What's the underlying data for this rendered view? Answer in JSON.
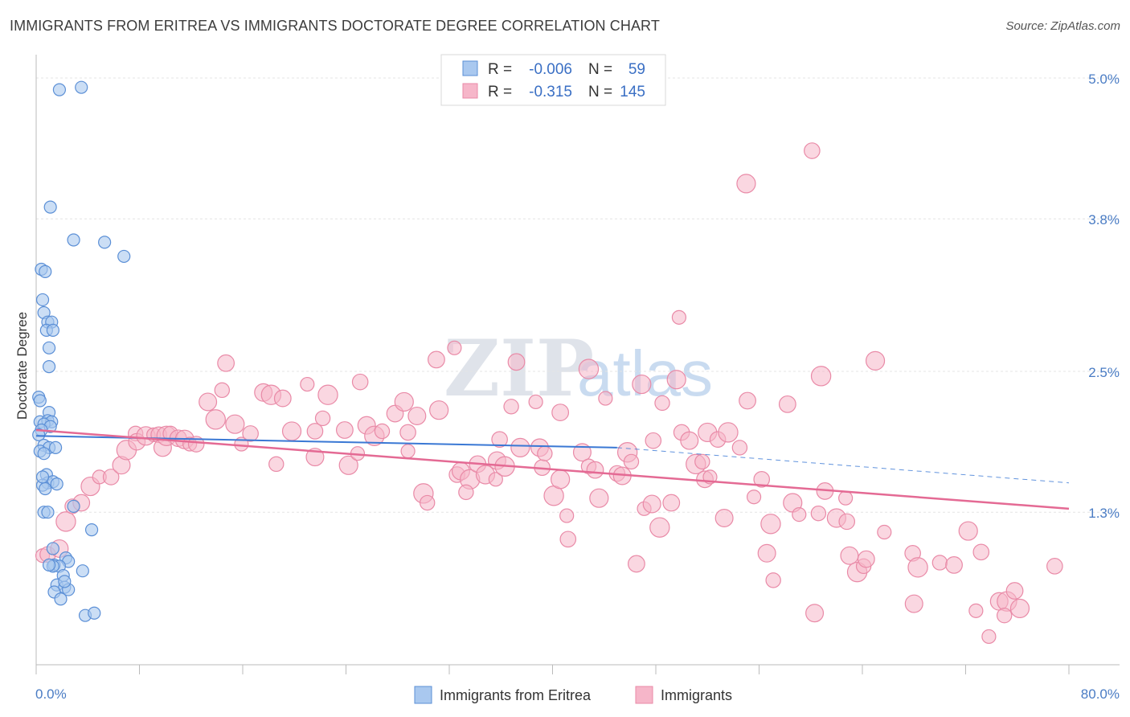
{
  "title": "IMMIGRANTS FROM ERITREA VS IMMIGRANTS DOCTORATE DEGREE CORRELATION CHART",
  "source": "Source: ZipAtlas.com",
  "watermark": {
    "zip": "ZIP",
    "atlas": "atlas"
  },
  "legend_stats": [
    {
      "r_label": "R =",
      "r_value": "-0.006",
      "n_label": "N =",
      "n_value": "59"
    },
    {
      "r_label": "R =",
      "r_value": "-0.315",
      "n_label": "N =",
      "n_value": "145"
    }
  ],
  "chart_data": {
    "type": "scatter",
    "title": "IMMIGRANTS FROM ERITREA VS IMMIGRANTS DOCTORATE DEGREE CORRELATION CHART",
    "xlabel": "",
    "ylabel": "Doctorate Degree",
    "xlim": [
      0,
      80
    ],
    "ylim": [
      0,
      5.2
    ],
    "x_tick_labels": [
      "0.0%",
      "80.0%"
    ],
    "y_ticks": [
      1.3,
      2.5,
      3.8,
      5.0
    ],
    "y_tick_labels": [
      "1.3%",
      "2.5%",
      "3.8%",
      "5.0%"
    ],
    "grid": true,
    "legend_position": "top-center",
    "colors": {
      "blue_fill": "#a9c8ef",
      "blue_stroke": "#5b8fd6",
      "blue_line": "#3a78d4",
      "pink_fill": "#f6b6c9",
      "pink_stroke": "#e98aa7",
      "pink_line": "#e46a94"
    },
    "series": [
      {
        "name": "Immigrants from Eritrea",
        "r": -0.006,
        "n": 59,
        "trend": {
          "x": [
            0,
            45
          ],
          "y": [
            1.95,
            1.85
          ],
          "dashed_extension": {
            "x": [
              45,
              80
            ],
            "y": [
              1.85,
              1.55
            ]
          }
        },
        "points": [
          [
            1.8,
            4.9
          ],
          [
            3.5,
            4.92
          ],
          [
            1.1,
            3.9
          ],
          [
            2.9,
            3.62
          ],
          [
            5.3,
            3.6
          ],
          [
            6.8,
            3.48
          ],
          [
            0.4,
            3.37
          ],
          [
            0.7,
            3.35
          ],
          [
            0.5,
            3.11
          ],
          [
            0.6,
            3.0
          ],
          [
            0.9,
            2.92
          ],
          [
            1.2,
            2.92
          ],
          [
            0.8,
            2.85
          ],
          [
            1.3,
            2.85
          ],
          [
            1.0,
            2.7
          ],
          [
            1.0,
            2.54
          ],
          [
            0.2,
            2.28
          ],
          [
            0.3,
            2.25
          ],
          [
            1.0,
            2.15
          ],
          [
            0.3,
            2.07
          ],
          [
            0.9,
            2.08
          ],
          [
            1.2,
            2.07
          ],
          [
            0.6,
            2.05
          ],
          [
            1.1,
            2.03
          ],
          [
            0.4,
            2.0
          ],
          [
            0.2,
            1.96
          ],
          [
            0.6,
            1.87
          ],
          [
            1.0,
            1.85
          ],
          [
            1.5,
            1.85
          ],
          [
            0.3,
            1.82
          ],
          [
            0.6,
            1.8
          ],
          [
            0.8,
            1.62
          ],
          [
            0.9,
            1.55
          ],
          [
            1.3,
            1.56
          ],
          [
            0.5,
            1.53
          ],
          [
            1.6,
            1.54
          ],
          [
            0.7,
            1.5
          ],
          [
            2.9,
            1.35
          ],
          [
            0.6,
            1.3
          ],
          [
            4.3,
            1.15
          ],
          [
            1.3,
            0.99
          ],
          [
            2.3,
            0.91
          ],
          [
            1.4,
            0.85
          ],
          [
            2.5,
            0.88
          ],
          [
            1.8,
            0.84
          ],
          [
            1.3,
            0.84
          ],
          [
            2.1,
            0.76
          ],
          [
            1.6,
            0.68
          ],
          [
            2.2,
            0.66
          ],
          [
            2.5,
            0.64
          ],
          [
            1.4,
            0.62
          ],
          [
            1.9,
            0.56
          ],
          [
            3.8,
            0.42
          ],
          [
            4.5,
            0.44
          ],
          [
            2.2,
            0.71
          ],
          [
            1.0,
            0.85
          ],
          [
            3.6,
            0.8
          ],
          [
            0.9,
            1.3
          ],
          [
            0.5,
            1.6
          ]
        ]
      },
      {
        "name": "Immigrants",
        "r": -0.315,
        "n": 145,
        "trend": {
          "x": [
            0,
            80
          ],
          "y": [
            2.0,
            1.33
          ]
        },
        "points": [
          [
            0.5,
            0.93
          ],
          [
            0.9,
            0.94
          ],
          [
            1.8,
            0.99
          ],
          [
            2.3,
            1.22
          ],
          [
            2.8,
            1.35
          ],
          [
            3.5,
            1.38
          ],
          [
            4.2,
            1.52
          ],
          [
            4.9,
            1.6
          ],
          [
            5.8,
            1.6
          ],
          [
            6.6,
            1.7
          ],
          [
            7.0,
            1.83
          ],
          [
            7.7,
            1.97
          ],
          [
            7.8,
            1.9
          ],
          [
            8.5,
            1.95
          ],
          [
            9.1,
            1.96
          ],
          [
            9.5,
            1.96
          ],
          [
            9.8,
            1.85
          ],
          [
            10.1,
            1.95
          ],
          [
            10.4,
            1.97
          ],
          [
            11.0,
            1.93
          ],
          [
            11.5,
            1.92
          ],
          [
            11.9,
            1.88
          ],
          [
            12.4,
            1.88
          ],
          [
            13.3,
            2.24
          ],
          [
            13.9,
            2.09
          ],
          [
            14.4,
            2.34
          ],
          [
            14.7,
            2.57
          ],
          [
            15.4,
            2.05
          ],
          [
            15.9,
            1.88
          ],
          [
            16.6,
            1.97
          ],
          [
            17.6,
            2.32
          ],
          [
            18.2,
            2.3
          ],
          [
            18.6,
            1.71
          ],
          [
            19.1,
            2.27
          ],
          [
            19.8,
            1.99
          ],
          [
            21.0,
            2.39
          ],
          [
            21.6,
            1.99
          ],
          [
            21.6,
            1.77
          ],
          [
            22.6,
            2.3
          ],
          [
            22.2,
            2.1
          ],
          [
            23.9,
            2.0
          ],
          [
            24.2,
            1.7
          ],
          [
            24.9,
            1.8
          ],
          [
            25.1,
            2.41
          ],
          [
            25.6,
            2.04
          ],
          [
            26.2,
            1.95
          ],
          [
            26.8,
            1.99
          ],
          [
            27.8,
            2.14
          ],
          [
            28.5,
            2.24
          ],
          [
            28.8,
            1.82
          ],
          [
            28.8,
            1.98
          ],
          [
            29.5,
            2.12
          ],
          [
            30.0,
            1.46
          ],
          [
            30.3,
            1.38
          ],
          [
            31.0,
            2.6
          ],
          [
            31.2,
            2.17
          ],
          [
            32.4,
            2.7
          ],
          [
            32.6,
            1.62
          ],
          [
            32.9,
            1.65
          ],
          [
            33.6,
            1.58
          ],
          [
            33.3,
            1.47
          ],
          [
            34.2,
            1.71
          ],
          [
            34.8,
            1.62
          ],
          [
            35.6,
            1.58
          ],
          [
            35.9,
            1.92
          ],
          [
            35.7,
            1.74
          ],
          [
            36.3,
            1.69
          ],
          [
            36.8,
            2.2
          ],
          [
            37.2,
            2.58
          ],
          [
            37.5,
            1.85
          ],
          [
            38.7,
            2.24
          ],
          [
            39.2,
            1.68
          ],
          [
            39.0,
            1.85
          ],
          [
            40.1,
            1.44
          ],
          [
            39.4,
            1.8
          ],
          [
            40.6,
            2.15
          ],
          [
            40.6,
            1.58
          ],
          [
            41.1,
            1.27
          ],
          [
            41.2,
            1.07
          ],
          [
            42.3,
            1.81
          ],
          [
            42.8,
            2.52
          ],
          [
            42.8,
            1.69
          ],
          [
            43.3,
            1.66
          ],
          [
            43.6,
            1.42
          ],
          [
            44.1,
            2.27
          ],
          [
            45.0,
            1.63
          ],
          [
            45.4,
            1.61
          ],
          [
            45.8,
            1.81
          ],
          [
            46.1,
            1.73
          ],
          [
            46.5,
            0.86
          ],
          [
            46.9,
            2.39
          ],
          [
            47.1,
            1.33
          ],
          [
            47.8,
            1.91
          ],
          [
            47.7,
            1.37
          ],
          [
            48.3,
            1.17
          ],
          [
            48.5,
            2.23
          ],
          [
            49.2,
            1.38
          ],
          [
            49.6,
            2.43
          ],
          [
            49.8,
            2.96
          ],
          [
            50.0,
            1.98
          ],
          [
            50.6,
            1.91
          ],
          [
            51.1,
            1.71
          ],
          [
            51.6,
            1.73
          ],
          [
            51.8,
            1.58
          ],
          [
            52.0,
            1.98
          ],
          [
            52.2,
            1.6
          ],
          [
            52.8,
            1.92
          ],
          [
            53.3,
            1.25
          ],
          [
            53.6,
            1.98
          ],
          [
            54.5,
            1.85
          ],
          [
            55.1,
            2.25
          ],
          [
            55.0,
            4.1
          ],
          [
            55.6,
            1.43
          ],
          [
            56.2,
            1.58
          ],
          [
            56.6,
            0.95
          ],
          [
            56.9,
            1.2
          ],
          [
            57.1,
            0.72
          ],
          [
            58.2,
            2.22
          ],
          [
            58.6,
            1.38
          ],
          [
            59.1,
            1.28
          ],
          [
            60.1,
            4.38
          ],
          [
            60.3,
            0.44
          ],
          [
            60.8,
            2.46
          ],
          [
            60.6,
            1.29
          ],
          [
            61.1,
            1.48
          ],
          [
            62.0,
            1.25
          ],
          [
            62.7,
            1.42
          ],
          [
            62.8,
            1.22
          ],
          [
            63.0,
            0.93
          ],
          [
            63.6,
            0.79
          ],
          [
            64.1,
            0.84
          ],
          [
            64.3,
            0.9
          ],
          [
            65.0,
            2.59
          ],
          [
            65.7,
            1.13
          ],
          [
            67.9,
            0.95
          ],
          [
            68.0,
            0.52
          ],
          [
            68.3,
            0.83
          ],
          [
            70.0,
            0.87
          ],
          [
            71.1,
            0.85
          ],
          [
            72.2,
            1.14
          ],
          [
            72.8,
            0.46
          ],
          [
            73.2,
            0.96
          ],
          [
            74.6,
            0.54
          ],
          [
            75.2,
            0.54
          ],
          [
            75.0,
            0.42
          ],
          [
            75.8,
            0.63
          ],
          [
            76.2,
            0.48
          ],
          [
            73.8,
            0.24
          ],
          [
            78.9,
            0.84
          ]
        ]
      }
    ]
  },
  "bottom_legend": [
    {
      "label": "Immigrants from Eritrea"
    },
    {
      "label": "Immigrants"
    }
  ]
}
